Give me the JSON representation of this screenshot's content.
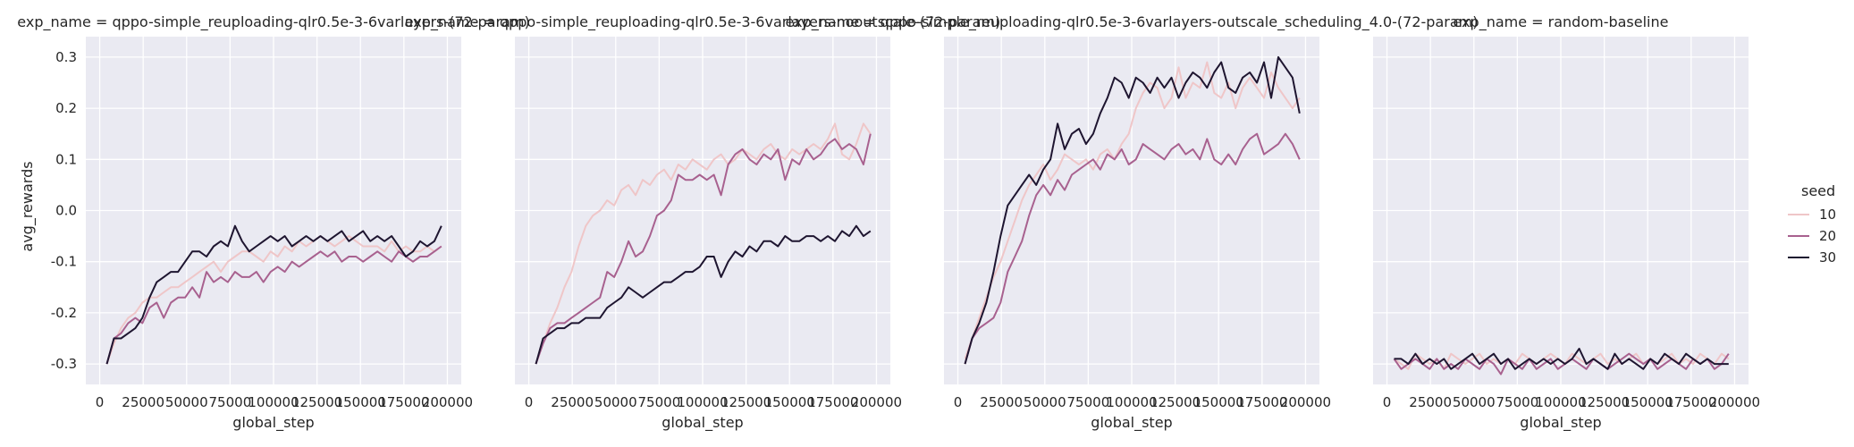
{
  "figure": {
    "shared_ylabel": "avg_rewards",
    "legend": {
      "title": "seed",
      "placement": "right-center"
    },
    "colors": {
      "10": "#efc6c8",
      "20": "#a8618f",
      "30": "#1e1530"
    },
    "panel_bg": "#eaeaf2",
    "grid_color": "#ffffff"
  },
  "chart_data": [
    {
      "type": "line",
      "title": "exp_name = qppo-simple_reuploading-qlr0.5e-3-6varlayers-(72-param)",
      "xlabel": "global_step",
      "ylabel": "avg_rewards",
      "xlim": [
        -8000,
        208000
      ],
      "ylim": [
        -0.34,
        0.34
      ],
      "xticks": [
        0,
        25000,
        50000,
        75000,
        100000,
        125000,
        150000,
        175000,
        200000
      ],
      "yticks": [
        -0.3,
        -0.2,
        -0.1,
        0.0,
        0.1,
        0.2,
        0.3
      ],
      "grid": true,
      "x": [
        4096,
        8192,
        12288,
        16384,
        20480,
        24576,
        28672,
        32768,
        36864,
        40960,
        45056,
        49152,
        53248,
        57344,
        61440,
        65536,
        69632,
        73728,
        77824,
        81920,
        86016,
        90112,
        94208,
        98304,
        102400,
        106496,
        110592,
        114688,
        118784,
        122880,
        126976,
        131072,
        135168,
        139264,
        143360,
        147456,
        151552,
        155648,
        159744,
        163840,
        167936,
        172032,
        176128,
        180224,
        184320,
        188416,
        192512,
        196608
      ],
      "series": [
        {
          "name": "10",
          "values": [
            -0.3,
            -0.26,
            -0.23,
            -0.21,
            -0.2,
            -0.18,
            -0.17,
            -0.17,
            -0.16,
            -0.15,
            -0.15,
            -0.14,
            -0.13,
            -0.12,
            -0.11,
            -0.1,
            -0.12,
            -0.1,
            -0.09,
            -0.08,
            -0.08,
            -0.09,
            -0.1,
            -0.08,
            -0.09,
            -0.07,
            -0.08,
            -0.06,
            -0.07,
            -0.06,
            -0.05,
            -0.06,
            -0.07,
            -0.06,
            -0.05,
            -0.06,
            -0.07,
            -0.07,
            -0.07,
            -0.08,
            -0.06,
            -0.08,
            -0.07,
            -0.08,
            -0.08,
            -0.07,
            -0.08,
            -0.07
          ]
        },
        {
          "name": "20",
          "values": [
            -0.3,
            -0.25,
            -0.24,
            -0.22,
            -0.21,
            -0.22,
            -0.19,
            -0.18,
            -0.21,
            -0.18,
            -0.17,
            -0.17,
            -0.15,
            -0.17,
            -0.12,
            -0.14,
            -0.13,
            -0.14,
            -0.12,
            -0.13,
            -0.13,
            -0.12,
            -0.14,
            -0.12,
            -0.11,
            -0.12,
            -0.1,
            -0.11,
            -0.1,
            -0.09,
            -0.08,
            -0.09,
            -0.08,
            -0.1,
            -0.09,
            -0.09,
            -0.1,
            -0.09,
            -0.08,
            -0.09,
            -0.1,
            -0.08,
            -0.09,
            -0.1,
            -0.09,
            -0.09,
            -0.08,
            -0.07
          ]
        },
        {
          "name": "30",
          "values": [
            -0.3,
            -0.25,
            -0.25,
            -0.24,
            -0.23,
            -0.21,
            -0.17,
            -0.14,
            -0.13,
            -0.12,
            -0.12,
            -0.1,
            -0.08,
            -0.08,
            -0.09,
            -0.07,
            -0.06,
            -0.07,
            -0.03,
            -0.06,
            -0.08,
            -0.07,
            -0.06,
            -0.05,
            -0.06,
            -0.05,
            -0.07,
            -0.06,
            -0.05,
            -0.06,
            -0.05,
            -0.06,
            -0.05,
            -0.04,
            -0.06,
            -0.05,
            -0.04,
            -0.06,
            -0.05,
            -0.06,
            -0.05,
            -0.07,
            -0.09,
            -0.08,
            -0.06,
            -0.07,
            -0.06,
            -0.03
          ]
        }
      ]
    },
    {
      "type": "line",
      "title": "exp_name = qppo-simple_reuploading-qlr0.5e-3-6varlayers-nooutscale-(72-param)",
      "xlabel": "global_step",
      "ylabel": "",
      "xlim": [
        -8000,
        208000
      ],
      "ylim": [
        -0.34,
        0.34
      ],
      "xticks": [
        0,
        25000,
        50000,
        75000,
        100000,
        125000,
        150000,
        175000,
        200000
      ],
      "yticks": [
        -0.3,
        -0.2,
        -0.1,
        0.0,
        0.1,
        0.2,
        0.3
      ],
      "grid": true,
      "x": [
        4096,
        8192,
        12288,
        16384,
        20480,
        24576,
        28672,
        32768,
        36864,
        40960,
        45056,
        49152,
        53248,
        57344,
        61440,
        65536,
        69632,
        73728,
        77824,
        81920,
        86016,
        90112,
        94208,
        98304,
        102400,
        106496,
        110592,
        114688,
        118784,
        122880,
        126976,
        131072,
        135168,
        139264,
        143360,
        147456,
        151552,
        155648,
        159744,
        163840,
        167936,
        172032,
        176128,
        180224,
        184320,
        188416,
        192512,
        196608
      ],
      "series": [
        {
          "name": "10",
          "values": [
            -0.3,
            -0.26,
            -0.22,
            -0.19,
            -0.15,
            -0.12,
            -0.07,
            -0.03,
            -0.01,
            0.0,
            0.02,
            0.01,
            0.04,
            0.05,
            0.03,
            0.06,
            0.05,
            0.07,
            0.08,
            0.06,
            0.09,
            0.08,
            0.1,
            0.09,
            0.08,
            0.1,
            0.11,
            0.09,
            0.1,
            0.12,
            0.11,
            0.1,
            0.12,
            0.13,
            0.11,
            0.1,
            0.12,
            0.11,
            0.12,
            0.13,
            0.12,
            0.14,
            0.17,
            0.11,
            0.1,
            0.13,
            0.17,
            0.15
          ]
        },
        {
          "name": "20",
          "values": [
            -0.3,
            -0.26,
            -0.23,
            -0.22,
            -0.22,
            -0.21,
            -0.2,
            -0.19,
            -0.18,
            -0.17,
            -0.12,
            -0.13,
            -0.1,
            -0.06,
            -0.09,
            -0.08,
            -0.05,
            -0.01,
            0.0,
            0.02,
            0.07,
            0.06,
            0.06,
            0.07,
            0.06,
            0.07,
            0.03,
            0.09,
            0.11,
            0.12,
            0.1,
            0.09,
            0.11,
            0.1,
            0.12,
            0.06,
            0.1,
            0.09,
            0.12,
            0.1,
            0.11,
            0.13,
            0.14,
            0.12,
            0.13,
            0.12,
            0.09,
            0.15
          ]
        },
        {
          "name": "30",
          "values": [
            -0.3,
            -0.25,
            -0.24,
            -0.23,
            -0.23,
            -0.22,
            -0.22,
            -0.21,
            -0.21,
            -0.21,
            -0.19,
            -0.18,
            -0.17,
            -0.15,
            -0.16,
            -0.17,
            -0.16,
            -0.15,
            -0.14,
            -0.14,
            -0.13,
            -0.12,
            -0.12,
            -0.11,
            -0.09,
            -0.09,
            -0.13,
            -0.1,
            -0.08,
            -0.09,
            -0.07,
            -0.08,
            -0.06,
            -0.06,
            -0.07,
            -0.05,
            -0.06,
            -0.06,
            -0.05,
            -0.05,
            -0.06,
            -0.05,
            -0.06,
            -0.04,
            -0.05,
            -0.03,
            -0.05,
            -0.04
          ]
        }
      ]
    },
    {
      "type": "line",
      "title": "exp_name = qppo-simple_reuploading-qlr0.5e-3-6varlayers-outscale_scheduling_4.0-(72-param)",
      "xlabel": "global_step",
      "ylabel": "",
      "xlim": [
        -8000,
        208000
      ],
      "ylim": [
        -0.34,
        0.34
      ],
      "xticks": [
        0,
        25000,
        50000,
        75000,
        100000,
        125000,
        150000,
        175000,
        200000
      ],
      "yticks": [
        -0.3,
        -0.2,
        -0.1,
        0.0,
        0.1,
        0.2,
        0.3
      ],
      "grid": true,
      "x": [
        4096,
        8192,
        12288,
        16384,
        20480,
        24576,
        28672,
        32768,
        36864,
        40960,
        45056,
        49152,
        53248,
        57344,
        61440,
        65536,
        69632,
        73728,
        77824,
        81920,
        86016,
        90112,
        94208,
        98304,
        102400,
        106496,
        110592,
        114688,
        118784,
        122880,
        126976,
        131072,
        135168,
        139264,
        143360,
        147456,
        151552,
        155648,
        159744,
        163840,
        167936,
        172032,
        176128,
        180224,
        184320,
        188416,
        192512,
        196608
      ],
      "series": [
        {
          "name": "10",
          "values": [
            -0.29,
            -0.25,
            -0.21,
            -0.17,
            -0.13,
            -0.1,
            -0.06,
            -0.02,
            0.02,
            0.05,
            0.07,
            0.09,
            0.06,
            0.08,
            0.11,
            0.1,
            0.09,
            0.1,
            0.08,
            0.11,
            0.12,
            0.1,
            0.13,
            0.15,
            0.2,
            0.23,
            0.25,
            0.24,
            0.2,
            0.22,
            0.28,
            0.22,
            0.25,
            0.24,
            0.29,
            0.23,
            0.22,
            0.25,
            0.2,
            0.24,
            0.26,
            0.24,
            0.22,
            0.27,
            0.24,
            0.22,
            0.2,
            0.22
          ]
        },
        {
          "name": "20",
          "values": [
            -0.3,
            -0.25,
            -0.23,
            -0.22,
            -0.21,
            -0.18,
            -0.12,
            -0.09,
            -0.06,
            -0.01,
            0.03,
            0.05,
            0.03,
            0.06,
            0.04,
            0.07,
            0.08,
            0.09,
            0.1,
            0.08,
            0.11,
            0.1,
            0.12,
            0.09,
            0.1,
            0.13,
            0.12,
            0.11,
            0.1,
            0.12,
            0.13,
            0.11,
            0.12,
            0.1,
            0.14,
            0.1,
            0.09,
            0.11,
            0.09,
            0.12,
            0.14,
            0.15,
            0.11,
            0.12,
            0.13,
            0.15,
            0.13,
            0.1
          ]
        },
        {
          "name": "30",
          "values": [
            -0.3,
            -0.25,
            -0.22,
            -0.18,
            -0.12,
            -0.05,
            0.01,
            0.03,
            0.05,
            0.07,
            0.05,
            0.08,
            0.1,
            0.17,
            0.12,
            0.15,
            0.16,
            0.13,
            0.15,
            0.19,
            0.22,
            0.26,
            0.25,
            0.22,
            0.26,
            0.25,
            0.23,
            0.26,
            0.24,
            0.26,
            0.22,
            0.25,
            0.27,
            0.26,
            0.24,
            0.27,
            0.29,
            0.24,
            0.23,
            0.26,
            0.27,
            0.25,
            0.29,
            0.22,
            0.3,
            0.28,
            0.26,
            0.19
          ]
        }
      ]
    },
    {
      "type": "line",
      "title": "exp_name = random-baseline",
      "xlabel": "global_step",
      "ylabel": "",
      "xlim": [
        -8000,
        208000
      ],
      "ylim": [
        -0.34,
        0.34
      ],
      "xticks": [
        0,
        25000,
        50000,
        75000,
        100000,
        125000,
        150000,
        175000,
        200000
      ],
      "yticks": [
        -0.3,
        -0.2,
        -0.1,
        0.0,
        0.1,
        0.2,
        0.3
      ],
      "grid": true,
      "x": [
        4096,
        8192,
        12288,
        16384,
        20480,
        24576,
        28672,
        32768,
        36864,
        40960,
        45056,
        49152,
        53248,
        57344,
        61440,
        65536,
        69632,
        73728,
        77824,
        81920,
        86016,
        90112,
        94208,
        98304,
        102400,
        106496,
        110592,
        114688,
        118784,
        122880,
        126976,
        131072,
        135168,
        139264,
        143360,
        147456,
        151552,
        155648,
        159744,
        163840,
        167936,
        172032,
        176128,
        180224,
        184320,
        188416,
        192512,
        196608
      ],
      "series": [
        {
          "name": "10",
          "values": [
            -0.29,
            -0.3,
            -0.31,
            -0.28,
            -0.29,
            -0.3,
            -0.29,
            -0.31,
            -0.28,
            -0.29,
            -0.3,
            -0.29,
            -0.28,
            -0.3,
            -0.29,
            -0.3,
            -0.29,
            -0.3,
            -0.28,
            -0.29,
            -0.3,
            -0.29,
            -0.28,
            -0.29,
            -0.3,
            -0.28,
            -0.29,
            -0.3,
            -0.29,
            -0.28,
            -0.3,
            -0.29,
            -0.3,
            -0.29,
            -0.28,
            -0.3,
            -0.29,
            -0.3,
            -0.29,
            -0.28,
            -0.3,
            -0.29,
            -0.3,
            -0.28,
            -0.29,
            -0.3,
            -0.28,
            -0.29
          ]
        },
        {
          "name": "20",
          "values": [
            -0.29,
            -0.31,
            -0.3,
            -0.29,
            -0.3,
            -0.31,
            -0.29,
            -0.31,
            -0.3,
            -0.31,
            -0.29,
            -0.3,
            -0.31,
            -0.29,
            -0.3,
            -0.32,
            -0.29,
            -0.3,
            -0.31,
            -0.29,
            -0.31,
            -0.3,
            -0.29,
            -0.31,
            -0.3,
            -0.29,
            -0.3,
            -0.31,
            -0.29,
            -0.3,
            -0.31,
            -0.3,
            -0.29,
            -0.28,
            -0.29,
            -0.3,
            -0.29,
            -0.31,
            -0.3,
            -0.29,
            -0.3,
            -0.31,
            -0.29,
            -0.3,
            -0.29,
            -0.31,
            -0.3,
            -0.28
          ]
        },
        {
          "name": "30",
          "values": [
            -0.29,
            -0.29,
            -0.3,
            -0.28,
            -0.3,
            -0.29,
            -0.3,
            -0.29,
            -0.31,
            -0.3,
            -0.29,
            -0.28,
            -0.3,
            -0.29,
            -0.28,
            -0.3,
            -0.29,
            -0.31,
            -0.3,
            -0.29,
            -0.3,
            -0.29,
            -0.3,
            -0.29,
            -0.3,
            -0.29,
            -0.27,
            -0.3,
            -0.29,
            -0.3,
            -0.31,
            -0.28,
            -0.3,
            -0.29,
            -0.3,
            -0.31,
            -0.29,
            -0.3,
            -0.28,
            -0.29,
            -0.3,
            -0.28,
            -0.29,
            -0.3,
            -0.29,
            -0.3,
            -0.3,
            -0.3
          ]
        }
      ]
    }
  ]
}
